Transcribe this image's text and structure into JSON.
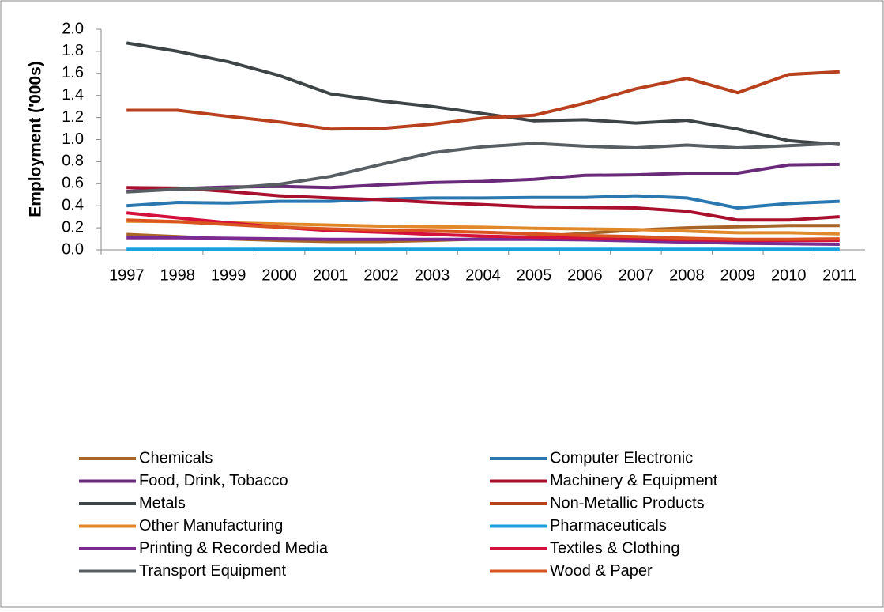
{
  "chart_data": {
    "type": "line",
    "y_label": "Employment ('000s)",
    "categories": [
      "1997",
      "1998",
      "1999",
      "2000",
      "2001",
      "2002",
      "2003",
      "2004",
      "2005",
      "2006",
      "2007",
      "2008",
      "2009",
      "2010",
      "2011"
    ],
    "ylim": [
      0,
      2.0
    ],
    "yticks": [
      {
        "value": 0,
        "label": "0.0"
      },
      0.2,
      0.4,
      0.6,
      0.8,
      {
        "value": 1,
        "label": "1.0"
      },
      1.2,
      1.4,
      1.6,
      1.8,
      {
        "value": 2,
        "label": "2.0"
      }
    ],
    "grid": false,
    "legend": "bottom",
    "series": [
      {
        "name": "Chemicals",
        "color": "#a8652a",
        "values": [
          0.14,
          0.12,
          0.1,
          0.085,
          0.075,
          0.075,
          0.085,
          0.1,
          0.12,
          0.15,
          0.18,
          0.2,
          0.21,
          0.22,
          0.22
        ]
      },
      {
        "name": "Computer Electronic",
        "color": "#2b78b0",
        "values": [
          0.4,
          0.43,
          0.425,
          0.44,
          0.44,
          0.46,
          0.47,
          0.47,
          0.475,
          0.475,
          0.49,
          0.47,
          0.38,
          0.42,
          0.44
        ]
      },
      {
        "name": "Food, Drink, Tobacco",
        "color": "#6a2a7a",
        "values": [
          0.53,
          0.555,
          0.57,
          0.575,
          0.565,
          0.59,
          0.61,
          0.62,
          0.64,
          0.675,
          0.68,
          0.695,
          0.695,
          0.77,
          0.775
        ]
      },
      {
        "name": "Machinery & Equipment",
        "color": "#a8102e",
        "values": [
          0.565,
          0.56,
          0.53,
          0.49,
          0.47,
          0.455,
          0.43,
          0.41,
          0.39,
          0.385,
          0.38,
          0.35,
          0.27,
          0.27,
          0.3
        ]
      },
      {
        "name": "Metals",
        "color": "#3f4447",
        "values": [
          1.875,
          1.8,
          1.705,
          1.58,
          1.415,
          1.35,
          1.3,
          1.235,
          1.17,
          1.18,
          1.15,
          1.175,
          1.095,
          0.99,
          0.955
        ]
      },
      {
        "name": "Non-Metallic Products",
        "color": "#b8401c",
        "values": [
          1.265,
          1.265,
          1.21,
          1.16,
          1.095,
          1.1,
          1.14,
          1.195,
          1.22,
          1.33,
          1.46,
          1.555,
          1.425,
          1.59,
          1.615
        ]
      },
      {
        "name": "Other Manufacturing",
        "color": "#e0882a",
        "values": [
          0.26,
          0.255,
          0.245,
          0.235,
          0.225,
          0.215,
          0.21,
          0.205,
          0.195,
          0.19,
          0.185,
          0.17,
          0.155,
          0.155,
          0.145
        ]
      },
      {
        "name": "Pharmaceuticals",
        "color": "#1aa0dc",
        "values": [
          0.005,
          0.005,
          0.005,
          0.005,
          0.005,
          0.005,
          0.005,
          0.005,
          0.005,
          0.005,
          0.005,
          0.005,
          0.005,
          0.005,
          0.005
        ]
      },
      {
        "name": "Printing & Recorded Media",
        "color": "#7a2a90",
        "values": [
          0.11,
          0.11,
          0.105,
          0.1,
          0.095,
          0.095,
          0.095,
          0.095,
          0.095,
          0.09,
          0.08,
          0.07,
          0.06,
          0.055,
          0.05
        ]
      },
      {
        "name": "Textiles & Clothing",
        "color": "#d4103c",
        "values": [
          0.335,
          0.29,
          0.245,
          0.205,
          0.175,
          0.16,
          0.14,
          0.125,
          0.115,
          0.11,
          0.1,
          0.09,
          0.085,
          0.085,
          0.085
        ]
      },
      {
        "name": "Transport Equipment",
        "color": "#595e62",
        "values": [
          0.525,
          0.55,
          0.56,
          0.595,
          0.665,
          0.775,
          0.88,
          0.935,
          0.965,
          0.94,
          0.925,
          0.95,
          0.925,
          0.945,
          0.965
        ]
      },
      {
        "name": "Wood & Paper",
        "color": "#d9541e",
        "values": [
          0.27,
          0.255,
          0.23,
          0.205,
          0.19,
          0.18,
          0.17,
          0.16,
          0.145,
          0.13,
          0.12,
          0.105,
          0.095,
          0.095,
          0.1
        ]
      }
    ]
  }
}
